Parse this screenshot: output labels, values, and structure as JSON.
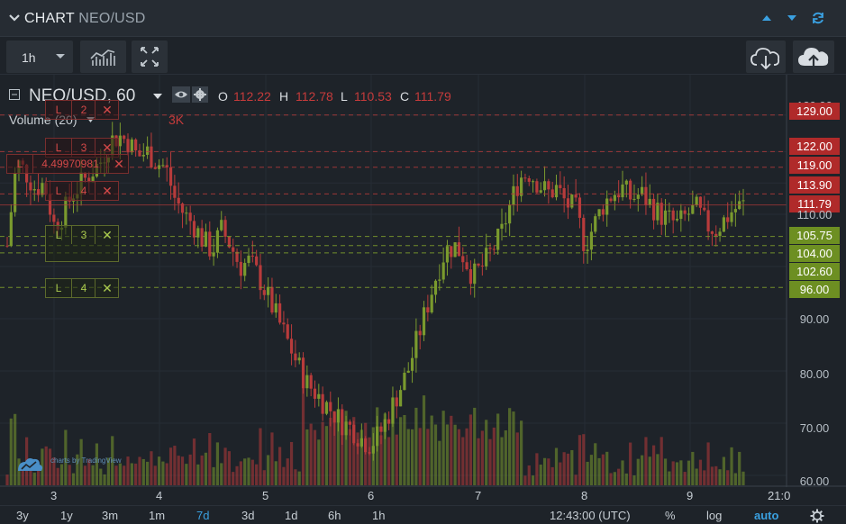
{
  "panel": {
    "title": "CHART",
    "pair": "NEO/USD"
  },
  "toolbar": {
    "interval": "1h"
  },
  "legend": {
    "symbol": "NEO/USD, 60",
    "o_label": "O",
    "o_value": "112.22",
    "h_label": "H",
    "h_value": "112.78",
    "l_label": "L",
    "l_value": "110.53",
    "c_label": "C",
    "c_value": "111.79"
  },
  "volume_legend": {
    "label": "Volume (20)",
    "value": "3K"
  },
  "order_tags": [
    {
      "side": "L",
      "qty": "2",
      "color": "red"
    },
    {
      "side": "L",
      "qty": "3",
      "color": "red"
    },
    {
      "side": "L",
      "qty": "4.49970981",
      "color": "red"
    },
    {
      "side": "L",
      "qty": "4",
      "color": "red"
    },
    {
      "side": "L",
      "qty": "3",
      "color": "green"
    },
    {
      "side": "L",
      "qty": "4",
      "color": "green"
    }
  ],
  "order_close_glyph": "✕",
  "price_labels": [
    {
      "text": "129.00",
      "kind": "red"
    },
    {
      "text": "122.00",
      "kind": "red"
    },
    {
      "text": "119.00",
      "kind": "red"
    },
    {
      "text": "113.90",
      "kind": "red"
    },
    {
      "text": "111.79",
      "kind": "red"
    },
    {
      "text": "105.75",
      "kind": "green"
    },
    {
      "text": "104.00",
      "kind": "green"
    },
    {
      "text": "102.60",
      "kind": "green"
    },
    {
      "text": "96.00",
      "kind": "green"
    }
  ],
  "axis_prices": {
    "p110": "110.00",
    "p90": "90.00",
    "p80": "80.00",
    "p70": "70.00",
    "p60": "60.00",
    "p129": "129.00"
  },
  "time_labels": {
    "t3": "3",
    "t4": "4",
    "t5": "5",
    "t6": "6",
    "t7": "7",
    "t8": "8",
    "t9": "9",
    "t21": "21:0"
  },
  "watermark": "charts by TradingView",
  "range_buttons": {
    "r3y": "3y",
    "r1y": "1y",
    "r3m": "3m",
    "r1m": "1m",
    "r7d": "7d",
    "r3d": "3d",
    "r1d": "1d",
    "r6h": "6h",
    "r1h": "1h"
  },
  "clock": "12:43:00 (UTC)",
  "scale": {
    "percent": "%",
    "log": "log",
    "auto": "auto"
  },
  "colors": {
    "up": "#7a9a2e",
    "down": "#b83b3b",
    "accent": "#3aa0e0"
  },
  "chart_data": {
    "type": "candlestick",
    "symbol": "NEO/USD",
    "interval": "60",
    "ylim": [
      60,
      130
    ],
    "x_ticks": [
      "3",
      "4",
      "5",
      "6",
      "7",
      "8",
      "9"
    ],
    "last": {
      "open": 112.22,
      "high": 112.78,
      "low": 110.53,
      "close": 111.79
    },
    "order_lines_sell": [
      129.0,
      122.0,
      119.0,
      113.9
    ],
    "order_lines_buy": [
      105.75,
      104.0,
      102.6,
      96.0
    ],
    "close_path": [
      104,
      120,
      118,
      115,
      116,
      108,
      110,
      114,
      116,
      118,
      120,
      124,
      125,
      124,
      121,
      122,
      120,
      119,
      113,
      110,
      108,
      105,
      103,
      107,
      104,
      100,
      101,
      98,
      94,
      90,
      86,
      82,
      78,
      76,
      74,
      72,
      70,
      69,
      67,
      66,
      68,
      72,
      76,
      80,
      86,
      92,
      98,
      103,
      104,
      102,
      98,
      100,
      103,
      106,
      112,
      117,
      118,
      116,
      114,
      115,
      112,
      111,
      104,
      108,
      112,
      114,
      115,
      113,
      114,
      112,
      110,
      109,
      108,
      110,
      111,
      108,
      107,
      109,
      111,
      111.79
    ]
  }
}
